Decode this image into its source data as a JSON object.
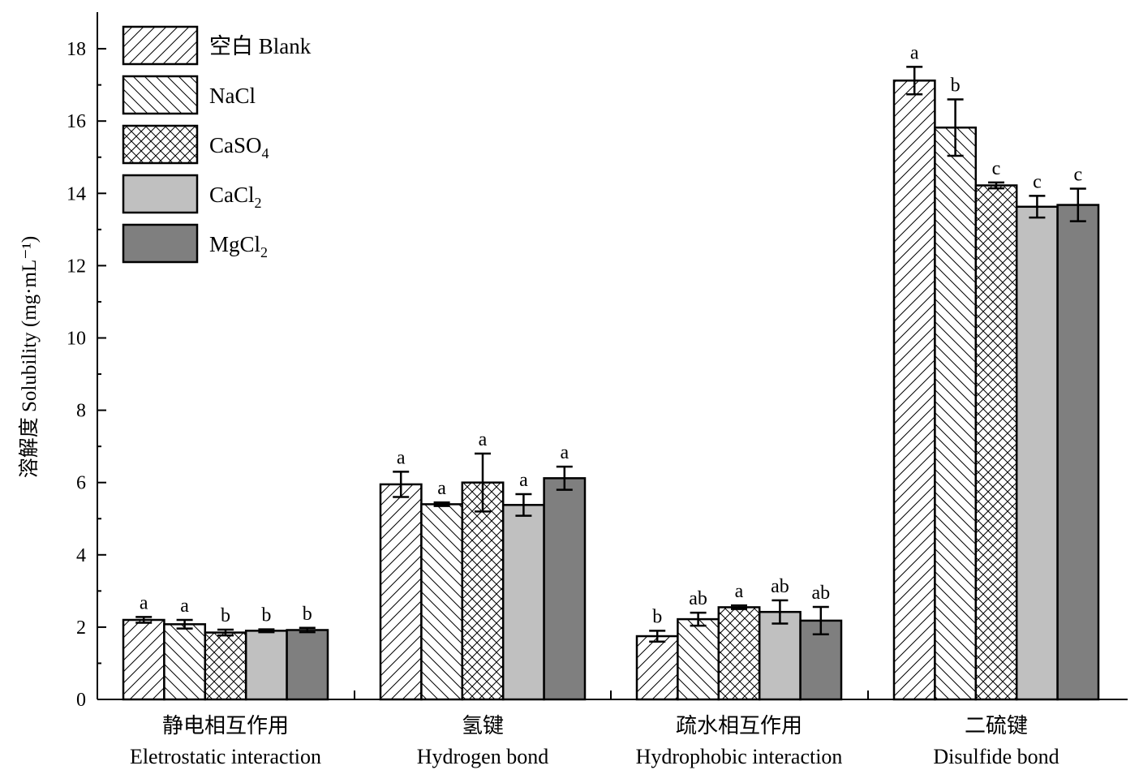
{
  "chart_data": {
    "type": "bar",
    "ylabel": "溶解度 Solubility (mg·mL⁻¹)",
    "ylim": [
      0,
      19
    ],
    "yticks": [
      0,
      2,
      4,
      6,
      8,
      10,
      12,
      14,
      16,
      18
    ],
    "categories": [
      {
        "cn": "静电相互作用",
        "en": "Eletrostatic interaction"
      },
      {
        "cn": "氢键",
        "en": "Hydrogen bond"
      },
      {
        "cn": "疏水相互作用",
        "en": "Hydrophobic interaction"
      },
      {
        "cn": "二硫键",
        "en": "Disulfide bond"
      }
    ],
    "series": [
      {
        "name": "空白 Blank",
        "pattern": "diag-right",
        "color": "#ffffff",
        "values": [
          2.2,
          5.95,
          1.75,
          17.12
        ],
        "errors": [
          0.08,
          0.35,
          0.15,
          0.38
        ],
        "labels": [
          "a",
          "a",
          "b",
          "a"
        ]
      },
      {
        "name": "NaCl",
        "pattern": "diag-left",
        "color": "#ffffff",
        "values": [
          2.08,
          5.4,
          2.22,
          15.82
        ],
        "errors": [
          0.12,
          0.05,
          0.18,
          0.78
        ],
        "labels": [
          "a",
          "a",
          "ab",
          "b"
        ]
      },
      {
        "name": "CaSO4",
        "pattern": "crosshatch",
        "color": "#ffffff",
        "values": [
          1.85,
          6.0,
          2.55,
          14.22
        ],
        "errors": [
          0.08,
          0.8,
          0.05,
          0.08
        ],
        "labels": [
          "b",
          "a",
          "a",
          "c"
        ]
      },
      {
        "name": "CaCl2",
        "pattern": "solid",
        "color": "#c0c0c0",
        "values": [
          1.9,
          5.38,
          2.42,
          13.63
        ],
        "errors": [
          0.04,
          0.3,
          0.32,
          0.3
        ],
        "labels": [
          "b",
          "a",
          "ab",
          "c"
        ]
      },
      {
        "name": "MgCl2",
        "pattern": "solid",
        "color": "#7f7f7f",
        "values": [
          1.92,
          6.12,
          2.18,
          13.68
        ],
        "errors": [
          0.06,
          0.32,
          0.38,
          0.45
        ],
        "labels": [
          "b",
          "a",
          "ab",
          "c"
        ]
      }
    ],
    "legend": {
      "placement": "top-left",
      "entries": [
        {
          "text": "空白 Blank",
          "sub": ""
        },
        {
          "text": "NaCl",
          "sub": ""
        },
        {
          "text": "CaSO",
          "sub": "4"
        },
        {
          "text": "CaCl",
          "sub": "2"
        },
        {
          "text": "MgCl",
          "sub": "2"
        }
      ]
    }
  }
}
